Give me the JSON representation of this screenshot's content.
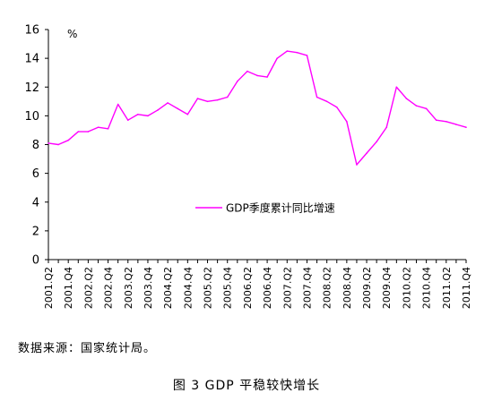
{
  "chart_data": {
    "type": "line",
    "unit": "%",
    "ylim": [
      0,
      16
    ],
    "yticks": [
      0,
      2,
      4,
      6,
      8,
      10,
      12,
      14,
      16
    ],
    "grid": false,
    "legend_position": "center",
    "categories": [
      "2001.Q2",
      "2001.Q3",
      "2001.Q4",
      "2002.Q1",
      "2002.Q2",
      "2002.Q3",
      "2002.Q4",
      "2003.Q1",
      "2003.Q2",
      "2003.Q3",
      "2003.Q4",
      "2004.Q1",
      "2004.Q2",
      "2004.Q3",
      "2004.Q4",
      "2005.Q1",
      "2005.Q2",
      "2005.Q3",
      "2005.Q4",
      "2006.Q1",
      "2006.Q2",
      "2006.Q3",
      "2006.Q4",
      "2007.Q1",
      "2007.Q2",
      "2007.Q3",
      "2007.Q4",
      "2008.Q1",
      "2008.Q2",
      "2008.Q3",
      "2008.Q4",
      "2009.Q1",
      "2009.Q2",
      "2009.Q3",
      "2009.Q4",
      "2010.Q1",
      "2010.Q2",
      "2010.Q3",
      "2010.Q4",
      "2011.Q1",
      "2011.Q2",
      "2011.Q3",
      "2011.Q4"
    ],
    "tick_labels": [
      "2001.Q2",
      "2001.Q4",
      "2002.Q2",
      "2002.Q4",
      "2003.Q2",
      "2003.Q4",
      "2004.Q2",
      "2004.Q4",
      "2005.Q2",
      "2005.Q4",
      "2006.Q2",
      "2006.Q4",
      "2007.Q2",
      "2007.Q4",
      "2008.Q2",
      "2008.Q4",
      "2009.Q2",
      "2009.Q4",
      "2010.Q2",
      "2010.Q4",
      "2011.Q2",
      "2011.Q4"
    ],
    "series": [
      {
        "name": "GDP季度累计同比增速",
        "color": "#ff00ff",
        "values": [
          8.1,
          8.0,
          8.3,
          8.9,
          8.9,
          9.2,
          9.1,
          10.8,
          9.7,
          10.1,
          10.0,
          10.4,
          10.9,
          10.5,
          10.1,
          11.2,
          11.0,
          11.1,
          11.3,
          12.4,
          13.1,
          12.8,
          12.7,
          14.0,
          14.5,
          14.4,
          14.2,
          11.3,
          11.0,
          10.6,
          9.6,
          6.6,
          7.4,
          8.2,
          9.2,
          12.0,
          11.2,
          10.7,
          10.5,
          9.7,
          9.6,
          9.4,
          9.2
        ]
      }
    ]
  },
  "source_text": "数据来源：国家统计局。",
  "caption_text": "图 3 GDP 平稳较快增长"
}
